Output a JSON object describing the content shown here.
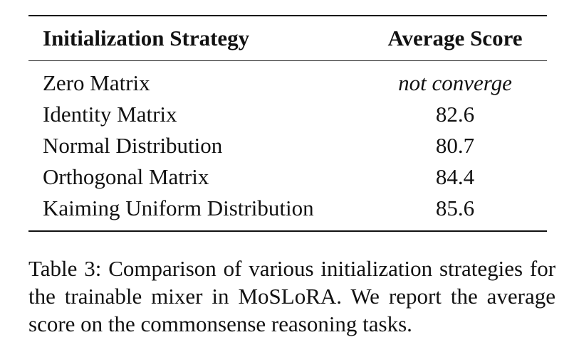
{
  "table": {
    "headers": [
      "Initialization Strategy",
      "Average Score"
    ],
    "rows": [
      {
        "strategy": "Zero Matrix",
        "score": "not converge"
      },
      {
        "strategy": "Identity Matrix",
        "score": "82.6"
      },
      {
        "strategy": "Normal Distribution",
        "score": "80.7"
      },
      {
        "strategy": "Orthogonal Matrix",
        "score": "84.4"
      },
      {
        "strategy": "Kaiming Uniform Distribution",
        "score": "85.6"
      }
    ]
  },
  "caption": {
    "label": "Table 3:",
    "text": "Comparison of various initialization strategies for the trainable mixer in MoSLoRA. We report the average score on the commonsense reasoning tasks."
  }
}
